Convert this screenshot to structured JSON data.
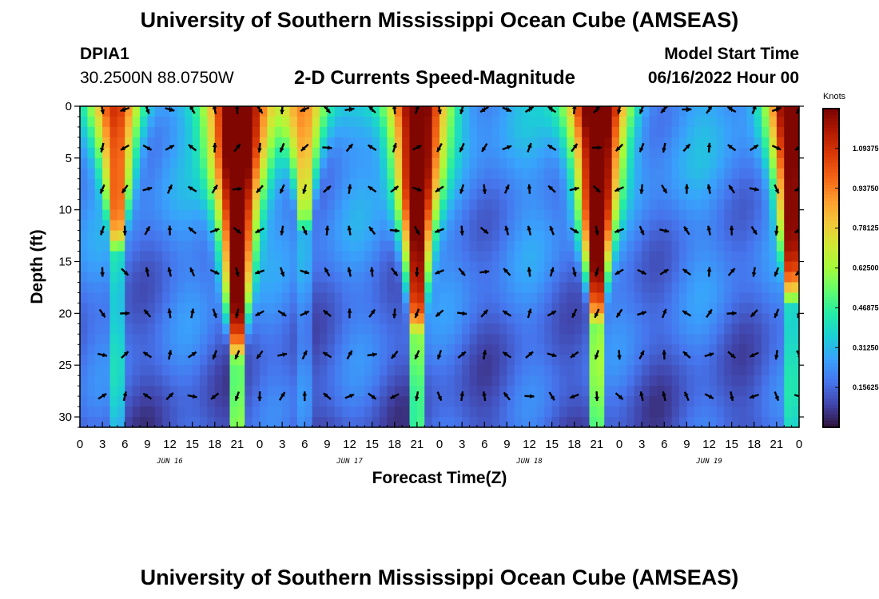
{
  "header": {
    "main_title": "University of Southern Mississippi Ocean Cube (AMSEAS)",
    "station_id": "DPIA1",
    "station_coords": "30.2500N  88.0750W",
    "plot_title": "2-D Currents Speed-Magnitude",
    "start_label": "Model Start Time",
    "start_value": "06/16/2022 Hour 00"
  },
  "footer": {
    "title": "University of Southern Mississippi Ocean Cube (AMSEAS)"
  },
  "chart_data": {
    "type": "heatmap",
    "title": "2-D Currents Speed-Magnitude",
    "xlabel": "Forecast Time(Z)",
    "ylabel": "Depth (ft)",
    "x_range_hours": [
      0,
      96
    ],
    "y_range_ft": [
      0,
      31
    ],
    "y_reversed": true,
    "x_tick_labels": [
      "0",
      "3",
      "6",
      "9",
      "12",
      "15",
      "18",
      "21",
      "0",
      "3",
      "6",
      "9",
      "12",
      "15",
      "18",
      "21",
      "0",
      "3",
      "6",
      "9",
      "12",
      "15",
      "18",
      "21",
      "0",
      "3",
      "6",
      "9",
      "12",
      "15",
      "18",
      "21",
      "0"
    ],
    "x_tick_step_hours": 3,
    "y_ticks": [
      0,
      5,
      10,
      15,
      20,
      25,
      30
    ],
    "y_tick_labels": [
      "0",
      "5",
      "10",
      "15",
      "20",
      "25",
      "30"
    ],
    "date_labels": [
      {
        "text": "JUN 16",
        "hour": 12
      },
      {
        "text": "JUN 17",
        "hour": 36
      },
      {
        "text": "JUN 18",
        "hour": 60
      },
      {
        "text": "JUN 19",
        "hour": 84
      }
    ],
    "colorbar": {
      "unit_label": "Knots",
      "range": [
        0,
        1.25
      ],
      "tick_values": [
        0.15625,
        0.3125,
        0.46875,
        0.625,
        0.78125,
        0.9375,
        1.09375
      ],
      "tick_labels": [
        "0.15625",
        "0.31250",
        "0.46875",
        "0.62500",
        "0.78125",
        "0.93750",
        "1.09375"
      ],
      "colors": [
        "#30123b",
        "#4145ab",
        "#4675ed",
        "#39a2fc",
        "#1bcfd4",
        "#24eca6",
        "#61fc6c",
        "#a4fc3b",
        "#d1e834",
        "#f3c63a",
        "#fe9b2d",
        "#f36315",
        "#d93806",
        "#b11901",
        "#7a0402"
      ]
    },
    "speed_peaks": [
      {
        "hour": 5.0,
        "strength": 0.8,
        "halfwidth": 3.4,
        "penetration_ft": 12
      },
      {
        "hour": 21.0,
        "strength": 1.22,
        "halfwidth": 4.2,
        "penetration_ft": 24
      },
      {
        "hour": 30.0,
        "strength": 0.65,
        "halfwidth": 3.0,
        "penetration_ft": 10
      },
      {
        "hour": 45.0,
        "strength": 1.15,
        "halfwidth": 4.0,
        "penetration_ft": 21
      },
      {
        "hour": 69.0,
        "strength": 1.18,
        "halfwidth": 4.0,
        "penetration_ft": 20
      },
      {
        "hour": 95.0,
        "strength": 1.05,
        "halfwidth": 3.2,
        "penetration_ft": 18
      }
    ],
    "arrow_hours": [
      3,
      6,
      9,
      12,
      15,
      18,
      21,
      24,
      27,
      30,
      33,
      36,
      39,
      42,
      45,
      48,
      51,
      54,
      57,
      60,
      63,
      66,
      69,
      72,
      75,
      78,
      81,
      84,
      87,
      90,
      93,
      96
    ],
    "arrow_depths_ft": [
      0,
      4,
      8,
      12,
      16,
      20,
      24,
      28
    ]
  }
}
